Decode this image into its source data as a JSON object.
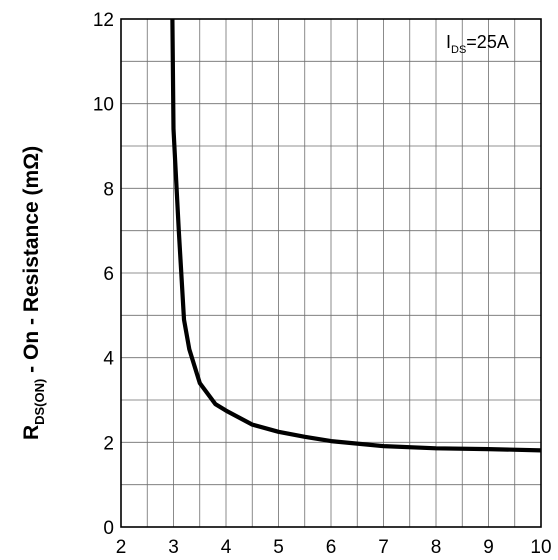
{
  "chart_data": {
    "type": "line",
    "title": "",
    "ylabel": {
      "main": "R",
      "subscript": "DS(ON)",
      "rest": " - On - Resistance (mΩ)"
    },
    "xlabel": "",
    "xlim": [
      2,
      10
    ],
    "ylim": [
      0,
      12
    ],
    "x_ticks": [
      2,
      3,
      4,
      5,
      6,
      7,
      8,
      9,
      10
    ],
    "y_ticks": [
      0,
      2,
      4,
      6,
      8,
      10,
      12
    ],
    "x_minor_step": 0.5,
    "y_minor_step": 1,
    "grid": true,
    "annotation": {
      "main": "I",
      "subscript": "DS",
      "rest": "=25A",
      "placement": "top-right"
    },
    "series": [
      {
        "x": [
          2.98,
          3.0,
          3.1,
          3.2,
          3.3,
          3.5,
          3.8,
          4.0,
          4.5,
          5.0,
          5.5,
          6.0,
          7.0,
          8.0,
          9.0,
          10.0
        ],
        "y": [
          12.0,
          9.4,
          7.0,
          4.9,
          4.2,
          3.4,
          2.9,
          2.75,
          2.42,
          2.25,
          2.13,
          2.03,
          1.91,
          1.86,
          1.84,
          1.81
        ]
      }
    ]
  }
}
